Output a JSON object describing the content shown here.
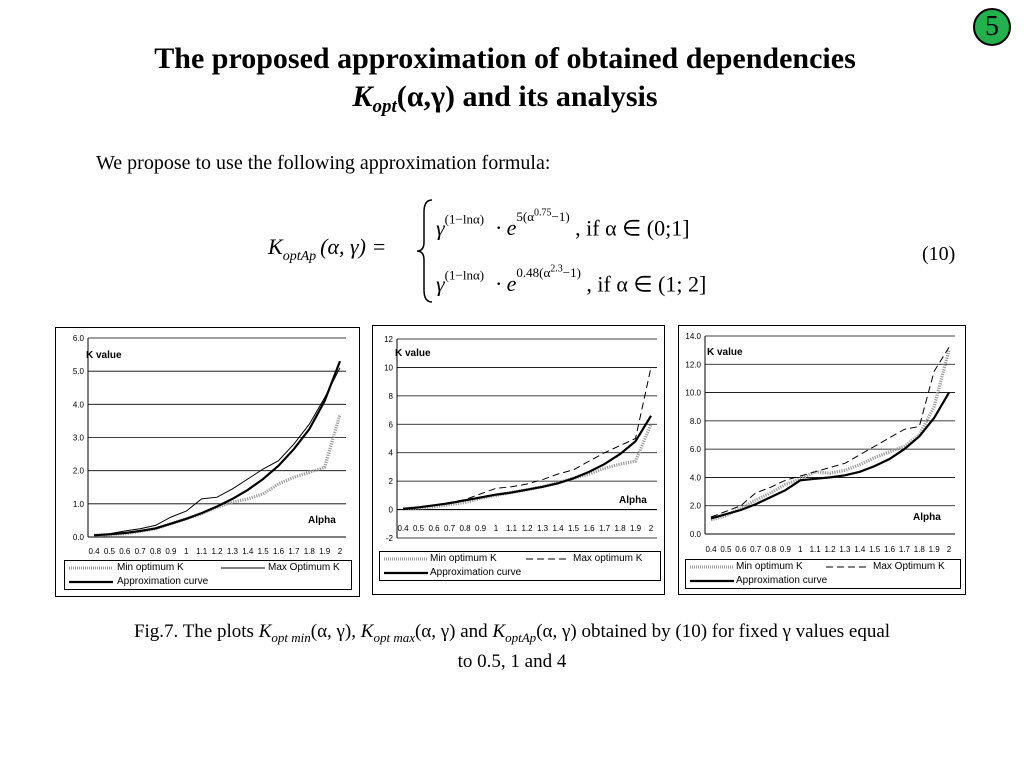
{
  "slide_number": "5",
  "title": {
    "line1": "The proposed approximation of obtained dependencies",
    "k_symbol": "K",
    "k_sub": "opt",
    "line2_rest": "(α,γ) and its analysis"
  },
  "intro_text": "We propose to use the following approximation formula:",
  "formula": {
    "lhs_k": "K",
    "lhs_sub": "optAp",
    "lhs_args": "(α, γ) =",
    "case1_base": "γ",
    "case1_base_exp": "(1−lnα)",
    "case1_dot": "· e",
    "case1_e_exp": "5(α",
    "case1_e_exp2": "0.75",
    "case1_e_exp3": "−1)",
    "case1_cond": ",  if  α ∈ (0;1]",
    "case2_base": "γ",
    "case2_base_exp": "(1−lnα)",
    "case2_dot": "· e",
    "case2_e_exp": "0.48(α",
    "case2_e_exp2": "2.3",
    "case2_e_exp3": "−1)",
    "case2_cond": ",  if  α ∈ (1; 2]",
    "eq_number": "(10)"
  },
  "caption": {
    "part1": "Fig.7. The plots ",
    "k1": "K",
    "k1_sub": "opt min",
    "args1": "(α, γ), ",
    "k2": "K",
    "k2_sub": "opt max",
    "args2": "(α, γ) and ",
    "k3": "K",
    "k3_sub": "optAp",
    "args3": "(α, γ) obtained by (10) for fixed γ values equal",
    "line2": "to 0.5, 1 and 4"
  },
  "colors": {
    "badge": "#22b14c",
    "min_series": "#999999",
    "axis": "#000000"
  },
  "chart_data": [
    {
      "type": "line",
      "ylabel": "K value",
      "xlabel": "Alpha",
      "ylim": [
        0,
        6
      ],
      "y_ticks": [
        "0.0",
        "1.0",
        "2.0",
        "3.0",
        "4.0",
        "5.0",
        "6.0"
      ],
      "y_tick_values": [
        0,
        1,
        2,
        3,
        4,
        5,
        6
      ],
      "x_ticks": [
        "0.4",
        "0.5",
        "0.6",
        "0.7",
        "0.8",
        "0.9",
        "1",
        "1.1",
        "1.2",
        "1.3",
        "1.4",
        "1.5",
        "1.6",
        "1.7",
        "1.8",
        "1.9",
        "2"
      ],
      "x": [
        0.4,
        0.5,
        0.6,
        0.7,
        0.8,
        0.9,
        1.0,
        1.1,
        1.2,
        1.3,
        1.4,
        1.5,
        1.6,
        1.7,
        1.8,
        1.9,
        2.0
      ],
      "grid": true,
      "legend_placement": "bottom",
      "legend": [
        "Min optimum K",
        "Max Optimum K",
        "Approximation curve"
      ],
      "series": [
        {
          "name": "Min optimum K",
          "style": "hatched",
          "values": [
            0.05,
            0.07,
            0.1,
            0.17,
            0.25,
            0.4,
            0.55,
            0.7,
            0.9,
            1.05,
            1.15,
            1.3,
            1.6,
            1.8,
            1.95,
            2.1,
            3.7
          ]
        },
        {
          "name": "Max Optimum K",
          "style": "thin",
          "values": [
            0.06,
            0.1,
            0.18,
            0.25,
            0.35,
            0.6,
            0.78,
            1.15,
            1.2,
            1.45,
            1.75,
            2.05,
            2.3,
            2.8,
            3.4,
            4.2,
            5.1
          ]
        },
        {
          "name": "Approximation curve",
          "style": "thick",
          "values": [
            0.05,
            0.08,
            0.12,
            0.18,
            0.26,
            0.4,
            0.55,
            0.72,
            0.92,
            1.15,
            1.42,
            1.75,
            2.15,
            2.65,
            3.25,
            4.1,
            5.3
          ]
        }
      ]
    },
    {
      "type": "line",
      "ylabel": "K value",
      "xlabel": "Alpha",
      "ylim": [
        -2,
        12
      ],
      "y_ticks": [
        "-2",
        "0",
        "2",
        "4",
        "6",
        "8",
        "10",
        "12"
      ],
      "y_tick_values": [
        -2,
        0,
        2,
        4,
        6,
        8,
        10,
        12
      ],
      "x_ticks": [
        "0.4",
        "0.5",
        "0.6",
        "0.7",
        "0.8",
        "0.9",
        "1",
        "1.1",
        "1.2",
        "1.3",
        "1.4",
        "1.5",
        "1.6",
        "1.7",
        "1.8",
        "1.9",
        "2"
      ],
      "x": [
        0.4,
        0.5,
        0.6,
        0.7,
        0.8,
        0.9,
        1.0,
        1.1,
        1.2,
        1.3,
        1.4,
        1.5,
        1.6,
        1.7,
        1.8,
        1.9,
        2.0
      ],
      "grid": true,
      "legend_placement": "bottom",
      "legend": [
        "Min optimum K",
        "Max optimum K",
        "Approximation curve"
      ],
      "series": [
        {
          "name": "Min optimum K",
          "style": "hatched",
          "values": [
            0.05,
            0.1,
            0.2,
            0.35,
            0.5,
            0.8,
            1.0,
            1.2,
            1.4,
            1.6,
            1.9,
            2.2,
            2.5,
            2.9,
            3.2,
            3.4,
            6.0
          ]
        },
        {
          "name": "Max optimum K",
          "style": "dashed",
          "values": [
            0.05,
            0.15,
            0.3,
            0.5,
            0.7,
            1.1,
            1.5,
            1.6,
            1.8,
            2.1,
            2.5,
            2.8,
            3.4,
            4.0,
            4.5,
            5.0,
            10.0
          ]
        },
        {
          "name": "Approximation curve",
          "style": "thick",
          "values": [
            0.05,
            0.15,
            0.3,
            0.45,
            0.65,
            0.85,
            1.05,
            1.2,
            1.4,
            1.6,
            1.85,
            2.2,
            2.65,
            3.2,
            3.9,
            4.8,
            6.6
          ]
        }
      ]
    },
    {
      "type": "line",
      "ylabel": "K value",
      "xlabel": "Alpha",
      "ylim": [
        0,
        14
      ],
      "y_ticks": [
        "0.0",
        "2.0",
        "4.0",
        "6.0",
        "8.0",
        "10.0",
        "12.0",
        "14.0"
      ],
      "y_tick_values": [
        0,
        2,
        4,
        6,
        8,
        10,
        12,
        14
      ],
      "x_ticks": [
        "0.4",
        "0.5",
        "0.6",
        "0.7",
        "0.8",
        "0.9",
        "1",
        "1.1",
        "1.2",
        "1.3",
        "1.4",
        "1.5",
        "1.6",
        "1.7",
        "1.8",
        "1.9",
        "2"
      ],
      "x": [
        0.4,
        0.5,
        0.6,
        0.7,
        0.8,
        0.9,
        1.0,
        1.1,
        1.2,
        1.3,
        1.4,
        1.5,
        1.6,
        1.7,
        1.8,
        1.9,
        2.0
      ],
      "grid": true,
      "legend_placement": "bottom",
      "legend": [
        "Min optimum K",
        "Max Optimum K",
        "Approximation curve"
      ],
      "series": [
        {
          "name": "Min optimum K",
          "style": "hatched",
          "values": [
            1.0,
            1.3,
            1.8,
            2.4,
            2.9,
            3.5,
            3.9,
            4.4,
            4.3,
            4.5,
            4.9,
            5.4,
            5.8,
            6.2,
            7.0,
            9.0,
            13.0
          ]
        },
        {
          "name": "Max Optimum K",
          "style": "dashed",
          "values": [
            1.2,
            1.6,
            2.0,
            2.9,
            3.3,
            3.8,
            4.1,
            4.4,
            4.7,
            5.0,
            5.6,
            6.2,
            6.8,
            7.4,
            7.6,
            11.5,
            13.2
          ]
        },
        {
          "name": "Approximation curve",
          "style": "thick",
          "values": [
            1.1,
            1.4,
            1.7,
            2.1,
            2.6,
            3.1,
            3.8,
            3.9,
            4.0,
            4.15,
            4.4,
            4.8,
            5.3,
            6.0,
            6.9,
            8.2,
            10.0
          ]
        }
      ]
    }
  ]
}
